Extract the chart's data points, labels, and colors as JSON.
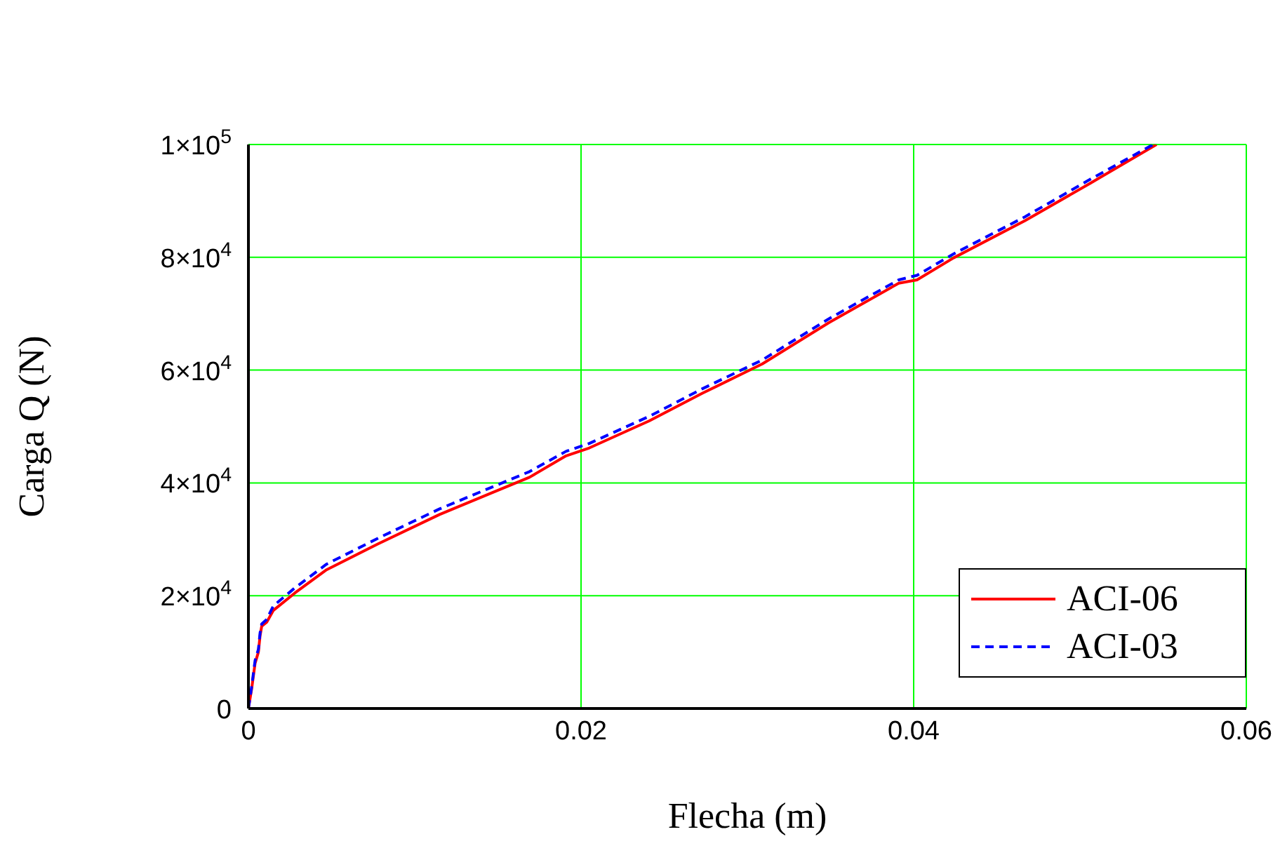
{
  "chart_data": {
    "type": "line",
    "xlabel": "Flecha (m)",
    "ylabel": "Carga Q (N)",
    "xlim": [
      0,
      0.06
    ],
    "xticks": [
      0,
      0.02,
      0.04,
      0.06
    ],
    "ylim": [
      0,
      100000
    ],
    "yticks": [
      0,
      {
        "value": 20000,
        "label": "2×10$^{4}$"
      },
      {
        "value": 40000,
        "label": "4×10$^{4}$"
      },
      {
        "value": 60000,
        "label": "6×10$^{4}$"
      },
      {
        "value": 80000,
        "label": "8×10$^{4}$"
      },
      {
        "value": 100000,
        "label": "1×10$^{5}$"
      }
    ],
    "grid": true,
    "legend": "bottom right",
    "series": [
      {
        "name": "ACI-06",
        "color": "#ff0000",
        "line_style": "solid",
        "x": [
          0,
          0.0002,
          0.0004,
          0.0006,
          0.0007,
          0.0008,
          0.0011,
          0.0015,
          0.0028,
          0.0047,
          0.0078,
          0.0115,
          0.0146,
          0.0169,
          0.0191,
          0.0205,
          0.0241,
          0.0273,
          0.0309,
          0.0349,
          0.0391,
          0.0402,
          0.0424,
          0.0467,
          0.0506,
          0.0546
        ],
        "values": [
          0,
          3600,
          8000,
          10000,
          12900,
          14600,
          15300,
          17400,
          20500,
          24600,
          29200,
          34400,
          38200,
          41000,
          44800,
          46200,
          51000,
          55900,
          61100,
          68400,
          75400,
          76000,
          79900,
          86500,
          93100,
          100000
        ]
      },
      {
        "name": "ACI-03",
        "color": "#0000ff",
        "line_style": "dashed",
        "x": [
          0,
          0.0002,
          0.0004,
          0.0006,
          0.0007,
          0.0008,
          0.0011,
          0.0015,
          0.0028,
          0.0047,
          0.0078,
          0.0115,
          0.0146,
          0.0169,
          0.0191,
          0.0205,
          0.0241,
          0.0273,
          0.0309,
          0.0349,
          0.0391,
          0.0402,
          0.0424,
          0.0467,
          0.0506,
          0.0544
        ],
        "values": [
          0,
          4000,
          8500,
          10500,
          13400,
          15000,
          15800,
          18200,
          21400,
          25600,
          30200,
          35400,
          39200,
          42000,
          45600,
          47000,
          51800,
          56700,
          61800,
          69100,
          76000,
          76800,
          80600,
          87200,
          93800,
          100000
        ]
      }
    ]
  }
}
